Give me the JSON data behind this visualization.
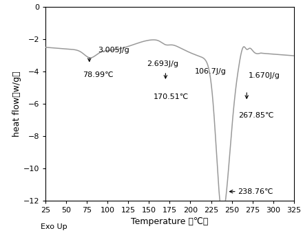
{
  "xlabel": "Temperature （℃）",
  "ylabel": "heat flow（w/g）",
  "exo_label": "Exo Up",
  "xlim": [
    25,
    325
  ],
  "ylim": [
    -12,
    0
  ],
  "xticks": [
    25,
    50,
    75,
    100,
    125,
    150,
    175,
    200,
    225,
    250,
    275,
    300,
    325
  ],
  "yticks": [
    0,
    -2,
    -4,
    -6,
    -8,
    -10,
    -12
  ],
  "line_color": "#999999",
  "ann_3005_label": "3.005J/g",
  "ann_3005_temp": "78.99℃",
  "ann_2693_label": "2.693J/g",
  "ann_2693_temp": "170.51℃",
  "ann_1067_label": "106.7J/g",
  "ann_1670_label": "1.670J/g",
  "ann_1670_temp": "267.85℃",
  "ann_238_temp": "238.76℃"
}
